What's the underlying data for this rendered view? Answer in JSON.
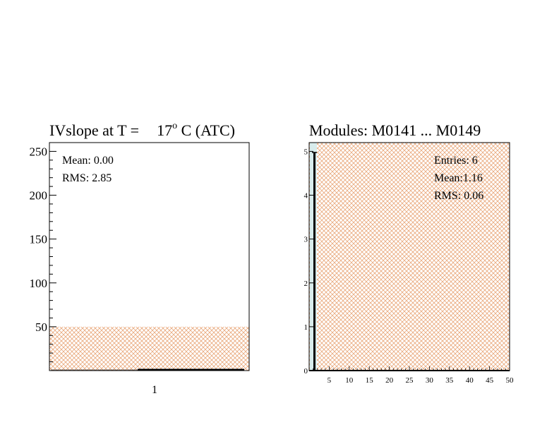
{
  "left_panel": {
    "title_prefix": "IVslope at T =",
    "title_value": "17",
    "title_sup": "o",
    "title_suffix": "C (ATC)",
    "stats": {
      "mean": "Mean: 0.00",
      "rms": "RMS:  2.85"
    }
  },
  "right_panel": {
    "title": "Modules:  M0141 ... M0149",
    "stats": {
      "entries": "Entries:   6",
      "mean": "Mean:1.16",
      "rms": "RMS: 0.06"
    }
  },
  "colors": {
    "hatch": "#e8a87c",
    "frame": "#000000",
    "bar_fill": "#d8ecec"
  },
  "chart_data": [
    {
      "type": "bar",
      "title": "IVslope at T =   17 C (ATC)",
      "xlabel": "",
      "ylabel": "",
      "ylim": [
        0,
        260
      ],
      "yticks": [
        50,
        100,
        150,
        200,
        250
      ],
      "xtick_labels": [
        "1"
      ],
      "hatched_band": [
        0,
        50
      ],
      "values": [
        2
      ],
      "grid": false
    },
    {
      "type": "bar",
      "title": "Modules:  M0141 ... M0149",
      "xlabel": "",
      "ylabel": "",
      "xlim": [
        0,
        50
      ],
      "ylim": [
        0,
        5.2
      ],
      "xticks": [
        5,
        10,
        15,
        20,
        25,
        30,
        35,
        40,
        45,
        50
      ],
      "yticks": [
        0,
        1,
        2,
        3,
        4,
        5
      ],
      "bins": [
        {
          "x": 1,
          "value": 5
        }
      ],
      "hatched_region": true,
      "grid": false
    }
  ]
}
